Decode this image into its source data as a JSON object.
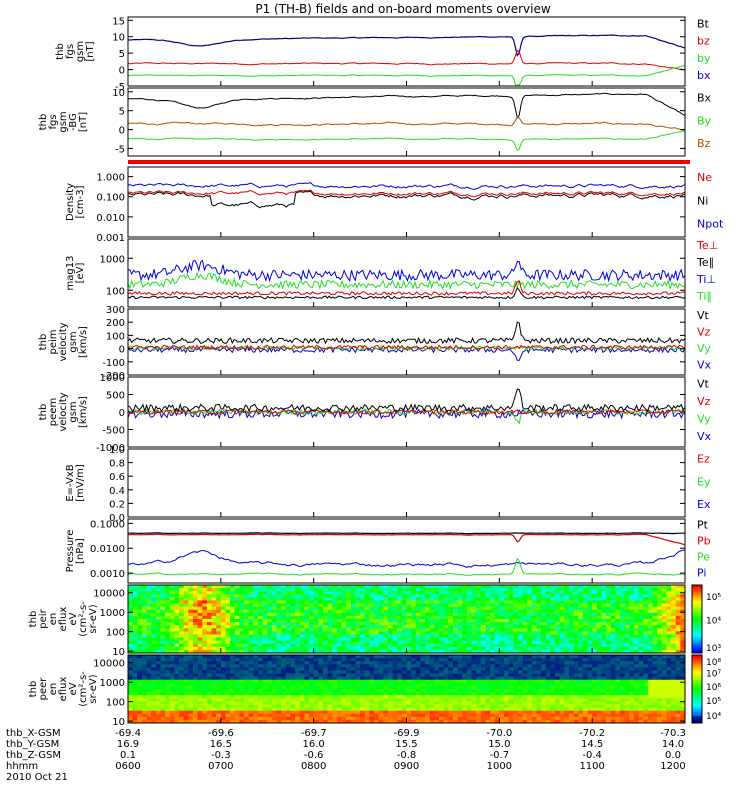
{
  "title": "P1 (TH-B) fields and on-board moments overview",
  "colors": {
    "black": "#000000",
    "red": "#e00000",
    "green": "#20e020",
    "blue": "#0000e0",
    "navy": "#00008b"
  },
  "panels": [
    {
      "id": "p1",
      "ylabel": [
        "thb",
        "fgs",
        "gsm",
        "[nT]"
      ],
      "ticks": [
        {
          "v": 15,
          "t": "15"
        },
        {
          "v": 10,
          "t": "10"
        },
        {
          "v": 5,
          "t": "5"
        },
        {
          "v": 0,
          "t": "0"
        },
        {
          "v": -5,
          "t": "-5"
        }
      ],
      "ylim": [
        -5,
        16
      ],
      "legend": [
        {
          "text": "Bt",
          "c": "#000000"
        },
        {
          "text": "bz",
          "c": "#e00000"
        },
        {
          "text": "by",
          "c": "#20e020"
        },
        {
          "text": "bx",
          "c": "#0000e0"
        }
      ]
    },
    {
      "id": "p2",
      "ylabel": [
        "thb",
        "fgs",
        "gsm",
        "-BG",
        "[nT]"
      ],
      "ticks": [
        {
          "v": 10,
          "t": "10"
        },
        {
          "v": 5,
          "t": "5"
        },
        {
          "v": 0,
          "t": "0"
        },
        {
          "v": -5,
          "t": "-5"
        }
      ],
      "ylim": [
        -7,
        11
      ],
      "legend": [
        {
          "text": "Bx",
          "c": "#000000"
        },
        {
          "text": "By",
          "c": "#20e020"
        },
        {
          "text": "Bz",
          "c": "#b05000"
        }
      ]
    },
    {
      "id": "p3",
      "ylabel": [
        "Density",
        "[cm-3]"
      ],
      "ticks": [
        {
          "v": 1,
          "t": "1.000"
        },
        {
          "v": 0.1,
          "t": "0.100"
        },
        {
          "v": 0.01,
          "t": "0.010"
        },
        {
          "v": 0.001,
          "t": "0.001"
        }
      ],
      "log": true,
      "ylim": [
        0.001,
        3
      ],
      "legend": [
        {
          "text": "Ne",
          "c": "#e00000"
        },
        {
          "text": "Ni",
          "c": "#000000"
        },
        {
          "text": "Npot",
          "c": "#0000e0"
        }
      ]
    },
    {
      "id": "p4",
      "ylabel": [
        "mag13",
        "[eV]"
      ],
      "ticks": [
        {
          "v": 1000,
          "t": "1000"
        },
        {
          "v": 100,
          "t": "100"
        }
      ],
      "log": true,
      "ylim": [
        30,
        4000
      ],
      "legend": [
        {
          "text": "Te⊥",
          "c": "#e00000"
        },
        {
          "text": "Te∥",
          "c": "#000000"
        },
        {
          "text": "Ti⊥",
          "c": "#0000e0"
        },
        {
          "text": "Ti∥",
          "c": "#20e020"
        }
      ]
    },
    {
      "id": "p5",
      "ylabel": [
        "thb",
        "peim",
        "velocity",
        "gsm",
        "[km/s]"
      ],
      "ticks": [
        {
          "v": 300,
          "t": "300"
        },
        {
          "v": 200,
          "t": "200"
        },
        {
          "v": 100,
          "t": "100"
        },
        {
          "v": 0,
          "t": "0"
        },
        {
          "v": -100,
          "t": "-100"
        },
        {
          "v": -200,
          "t": "-200"
        }
      ],
      "ylim": [
        -200,
        300
      ],
      "legend": [
        {
          "text": "Vt",
          "c": "#000000"
        },
        {
          "text": "Vz",
          "c": "#e00000"
        },
        {
          "text": "Vy",
          "c": "#20e020"
        },
        {
          "text": "Vx",
          "c": "#0000e0"
        }
      ]
    },
    {
      "id": "p6",
      "ylabel": [
        "thb",
        "peem",
        "velocity",
        "gsm",
        "[km/s]"
      ],
      "ticks": [
        {
          "v": 1000,
          "t": "1000"
        },
        {
          "v": 500,
          "t": "500"
        },
        {
          "v": 0,
          "t": "0"
        },
        {
          "v": -500,
          "t": "-500"
        },
        {
          "v": -1000,
          "t": "-1000"
        }
      ],
      "ylim": [
        -1000,
        1000
      ],
      "legend": [
        {
          "text": "Vt",
          "c": "#000000"
        },
        {
          "text": "Vz",
          "c": "#e00000"
        },
        {
          "text": "Vy",
          "c": "#20e020"
        },
        {
          "text": "Vx",
          "c": "#0000e0"
        }
      ]
    },
    {
      "id": "p7",
      "ylabel": [
        "E=-VxB",
        "[mV/m]"
      ],
      "ticks": [
        {
          "v": 1,
          "t": "1.0"
        },
        {
          "v": 0.8,
          "t": "0.8"
        },
        {
          "v": 0.6,
          "t": "0.6"
        },
        {
          "v": 0.4,
          "t": "0.4"
        },
        {
          "v": 0.2,
          "t": "0.2"
        },
        {
          "v": 0,
          "t": "0.0"
        }
      ],
      "ylim": [
        0,
        1
      ],
      "legend": [
        {
          "text": "Ez",
          "c": "#e00000"
        },
        {
          "text": "Ey",
          "c": "#20e020"
        },
        {
          "text": "Ex",
          "c": "#0000e0"
        }
      ]
    },
    {
      "id": "p8",
      "ylabel": [
        "Pressure",
        "[nPa]"
      ],
      "ticks": [
        {
          "v": 0.1,
          "t": "0.1000"
        },
        {
          "v": 0.01,
          "t": "0.0100"
        },
        {
          "v": 0.001,
          "t": "0.0010"
        }
      ],
      "log": true,
      "ylim": [
        0.0004,
        0.15
      ],
      "legend": [
        {
          "text": "Pt",
          "c": "#000000"
        },
        {
          "text": "Pb",
          "c": "#e00000"
        },
        {
          "text": "Pe",
          "c": "#20e020"
        },
        {
          "text": "Pi",
          "c": "#0000e0"
        }
      ]
    },
    {
      "id": "p9",
      "ylabel": [
        "thb",
        "peir",
        "en",
        "eflux",
        "eV",
        "(cm²-s-",
        "sr-eV)"
      ],
      "ticks": [
        {
          "v": 10000,
          "t": "10000"
        },
        {
          "v": 1000,
          "t": "1000"
        },
        {
          "v": 100,
          "t": "100"
        },
        {
          "v": 10,
          "t": "10"
        }
      ],
      "log": true,
      "ylim": [
        8,
        25000
      ],
      "colorbar": {
        "labels": [
          {
            "v": "10⁵",
            "pos": 0.1
          },
          {
            "v": "10⁴",
            "pos": 0.45
          },
          {
            "v": "10³",
            "pos": 0.85
          }
        ]
      }
    },
    {
      "id": "p10",
      "ylabel": [
        "thb",
        "peer",
        "en",
        "eflux",
        "eV",
        "(cm²-s-",
        "sr-eV)"
      ],
      "ticks": [
        {
          "v": 10000,
          "t": "10000"
        },
        {
          "v": 1000,
          "t": "1000"
        },
        {
          "v": 100,
          "t": "100"
        },
        {
          "v": 10,
          "t": "10"
        }
      ],
      "log": true,
      "ylim": [
        8,
        25000
      ],
      "colorbar": {
        "labels": [
          {
            "v": "10⁸",
            "pos": 0.03
          },
          {
            "v": "10⁷",
            "pos": 0.2
          },
          {
            "v": "10⁶",
            "pos": 0.4
          },
          {
            "v": "10⁵",
            "pos": 0.6
          },
          {
            "v": "10⁴",
            "pos": 0.82
          }
        ]
      }
    }
  ],
  "footer": {
    "row_labels": [
      "thb_X-GSM",
      "thb_Y-GSM",
      "thb_Z-GSM",
      "hhmm",
      "2010 Oct 21"
    ],
    "columns": [
      {
        "x": "-69.4",
        "y": "16.9",
        "z": "0.1",
        "t": "0600"
      },
      {
        "x": "-69.6",
        "y": "16.5",
        "z": "-0.3",
        "t": "0700"
      },
      {
        "x": "-69.7",
        "y": "16.0",
        "z": "-0.6",
        "t": "0800"
      },
      {
        "x": "-69.9",
        "y": "15.5",
        "z": "-0.8",
        "t": "0900"
      },
      {
        "x": "-70.0",
        "y": "15.0",
        "z": "-0.7",
        "t": "1000"
      },
      {
        "x": "-70.2",
        "y": "14.5",
        "z": "-0.4",
        "t": "1100"
      },
      {
        "x": "-70.3",
        "y": "14.0",
        "z": "0.0",
        "t": "1200"
      }
    ]
  },
  "chart_data": {
    "type": "line",
    "title": "P1 (TH-B) fields and on-board moments overview",
    "x_time_ticks": [
      "0600",
      "0700",
      "0800",
      "0900",
      "1000",
      "1100",
      "1200"
    ],
    "series_summary": [
      {
        "panel": "thb fgs gsm [nT]",
        "name": "Bt",
        "approx_level": 9
      },
      {
        "panel": "thb fgs gsm [nT]",
        "name": "bz",
        "approx_level": 2
      },
      {
        "panel": "thb fgs gsm [nT]",
        "name": "by",
        "approx_level": -2
      },
      {
        "panel": "Density [cm-3]",
        "name": "Npot",
        "approx_level": 0.3
      },
      {
        "panel": "Density [cm-3]",
        "name": "Ne",
        "approx_level": 0.15
      },
      {
        "panel": "Pressure [nPa]",
        "name": "Pb",
        "approx_level": 0.03
      },
      {
        "panel": "Pressure [nPa]",
        "name": "Pi",
        "approx_level": 0.002
      },
      {
        "panel": "Pressure [nPa]",
        "name": "Pe",
        "approx_level": 0.0009
      }
    ]
  }
}
